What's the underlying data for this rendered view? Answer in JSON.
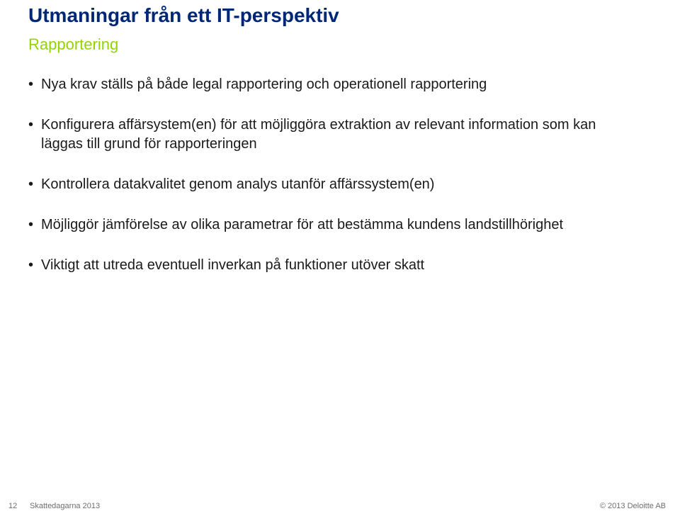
{
  "colors": {
    "title": "#002776",
    "subtitle": "#92d400",
    "body": "#1a1a1a",
    "footer": "#6e6e6e",
    "background": "#ffffff"
  },
  "fonts": {
    "title_size": 28,
    "subtitle_size": 22,
    "body_size": 20,
    "footer_size": 11
  },
  "title": "Utmaningar från ett IT-perspektiv",
  "subtitle": "Rapportering",
  "bullets": [
    "Nya krav ställs på både legal rapportering och operationell rapportering",
    "Konfigurera affärsystem(en) för att möjliggöra extraktion av relevant information som kan läggas till grund för rapporteringen",
    "Kontrollera datakvalitet genom analys utanför affärssystem(en)",
    "Möjliggör jämförelse av olika parametrar för att bestämma kundens landstillhörighet",
    "Viktigt att utreda eventuell inverkan på funktioner utöver skatt"
  ],
  "footer": {
    "page_number": "12",
    "event": "Skattedagarna 2013",
    "copyright": "© 2013 Deloitte AB"
  }
}
